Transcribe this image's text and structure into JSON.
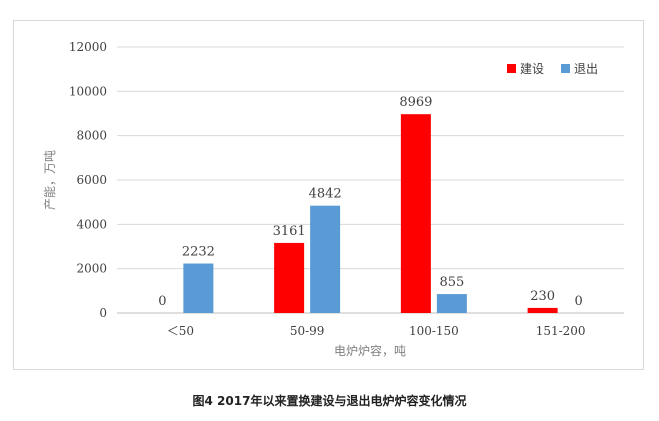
{
  "caption": "图4  2017年以来置换建设与退出电炉炉容变化情况",
  "chart_data": {
    "type": "bar",
    "categories": [
      "＜50",
      "50-99",
      "100-150",
      "151-200"
    ],
    "series": [
      {
        "name": "建设",
        "color": "#ff0000",
        "values": [
          0,
          3161,
          8969,
          230
        ]
      },
      {
        "name": "退出",
        "color": "#5b9bd5",
        "values": [
          2232,
          4842,
          855,
          0
        ]
      }
    ],
    "xlabel": "电炉炉容，吨",
    "ylabel": "产能，万吨",
    "ylim": [
      0,
      12000
    ],
    "yticks": [
      0,
      2000,
      4000,
      6000,
      8000,
      10000,
      12000
    ],
    "grid": true,
    "legend_position": "top-right"
  }
}
